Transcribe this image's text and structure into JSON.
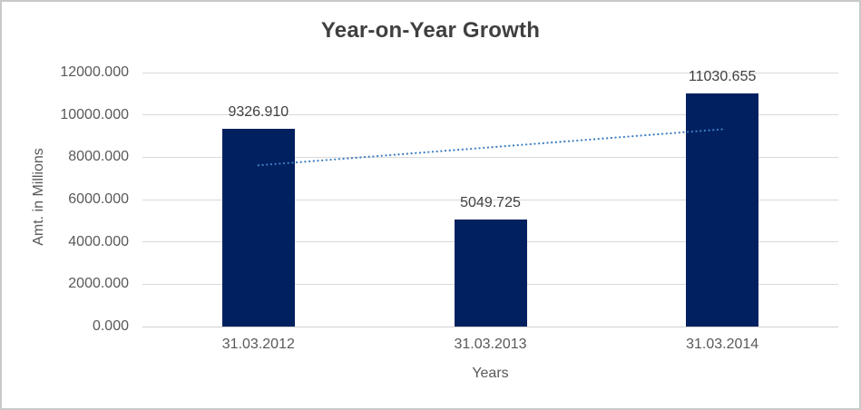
{
  "chart_data": {
    "type": "bar",
    "title": "Year-on-Year Growth",
    "xlabel": "Years",
    "ylabel": "Amt. in Millions",
    "categories": [
      "31.03.2012",
      "31.03.2013",
      "31.03.2014"
    ],
    "values": [
      9326.91,
      5049.725,
      11030.655
    ],
    "data_labels": [
      "9326.910",
      "5049.725",
      "11030.655"
    ],
    "ylim": [
      0,
      12000
    ],
    "ytick_step": 2000,
    "ytick_labels": [
      "0.000",
      "2000.000",
      "4000.000",
      "6000.000",
      "8000.000",
      "10000.000",
      "12000.000"
    ],
    "grid": true,
    "legend": false,
    "bar_color": "#002060",
    "gridline_color": "#d9d9d9",
    "title_color": "#3f3f3f",
    "axis_text_color": "#595959",
    "data_label_color": "#404040",
    "trendline": {
      "type": "linear",
      "style": "dotted",
      "color": "#3e7fc1",
      "start_value": 7617.25,
      "end_value": 9321.0
    }
  }
}
